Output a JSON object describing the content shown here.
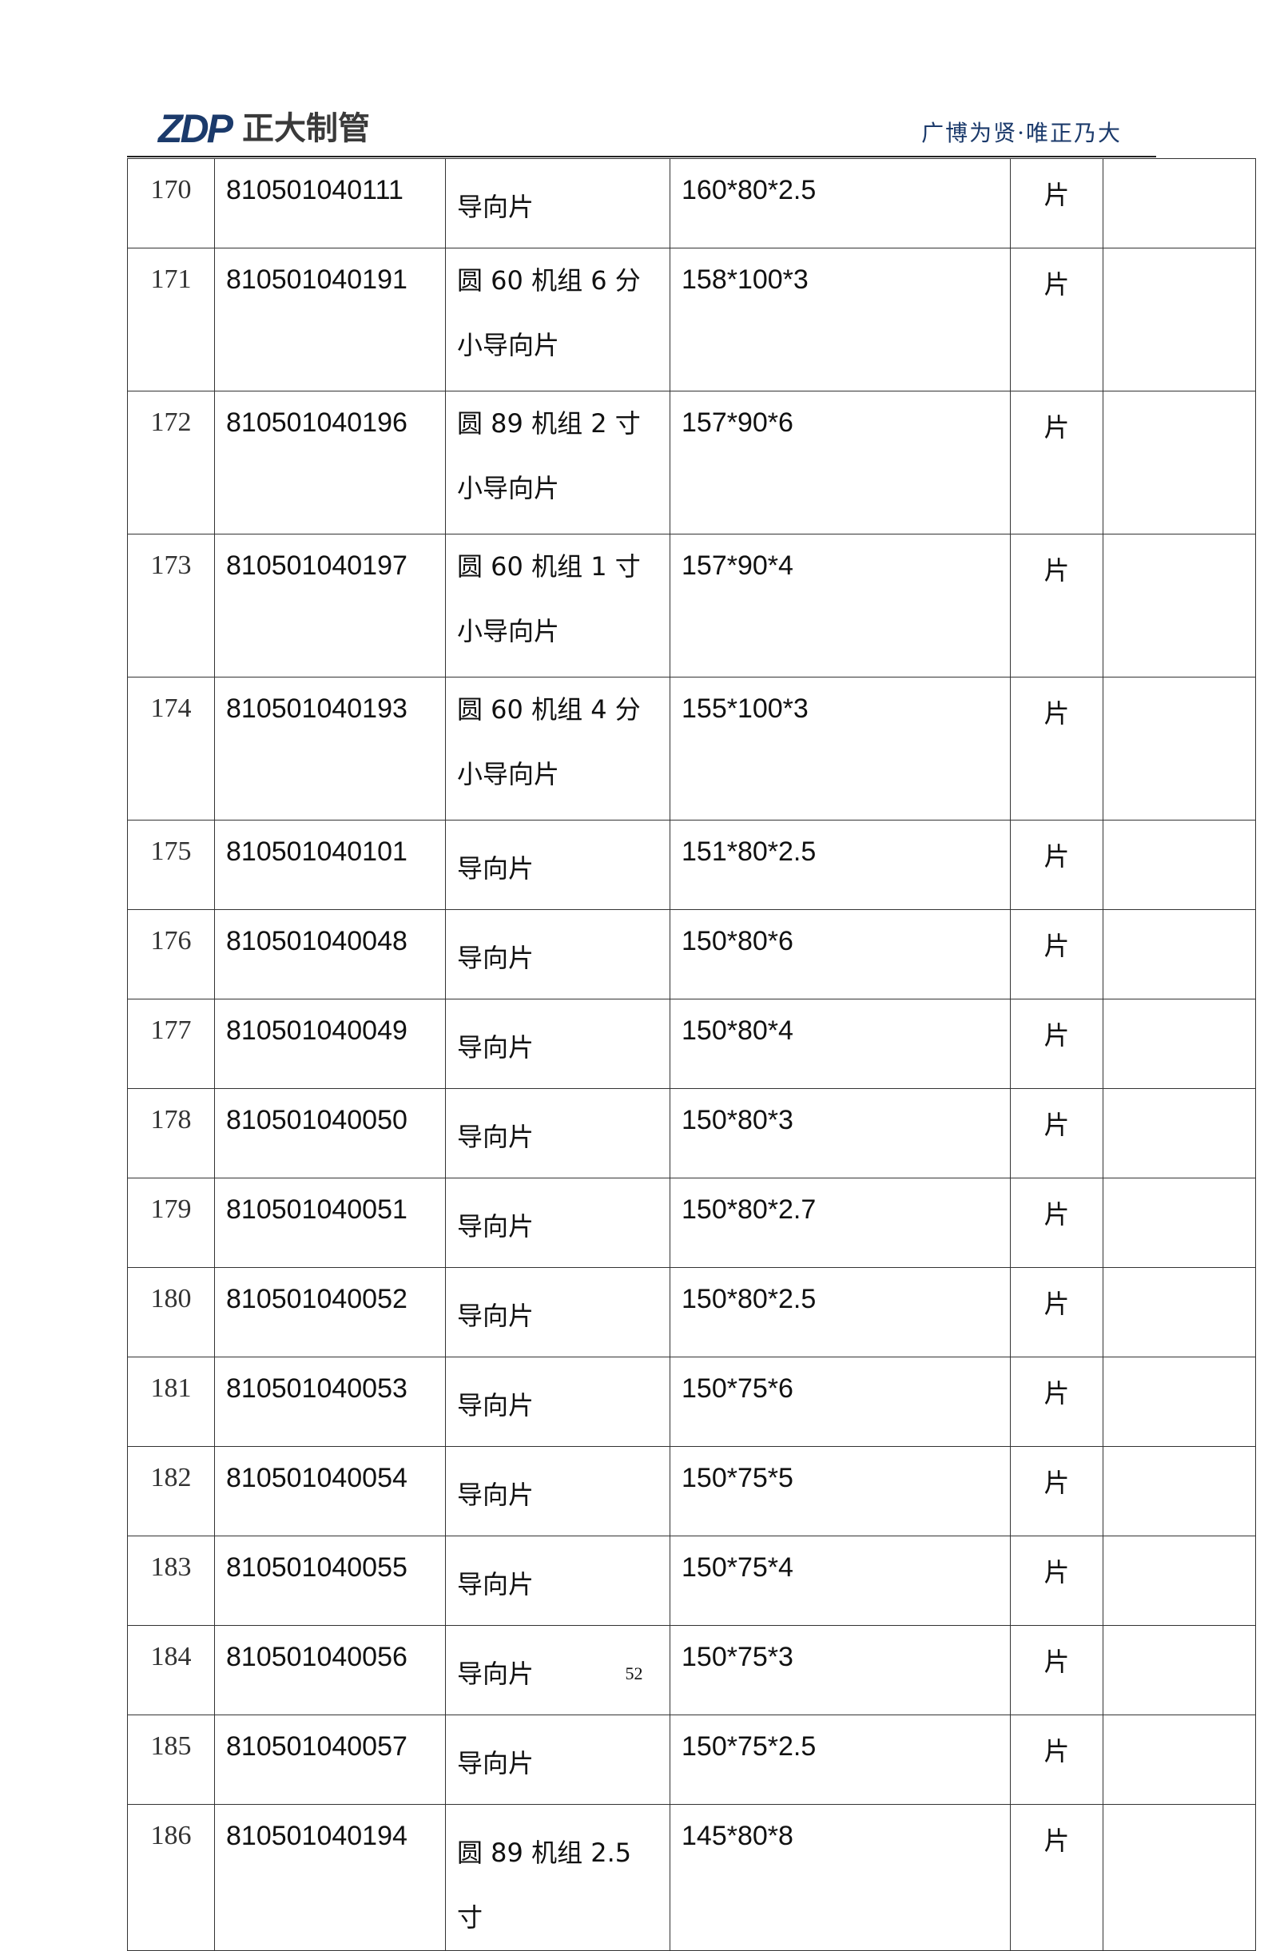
{
  "header": {
    "logo_mark": "ZDP",
    "logo_name": "正大制管",
    "slogan": "广博为贤·唯正乃大"
  },
  "rows": [
    {
      "no": "170",
      "code": "810501040111",
      "name": "导向片",
      "spec": "160*80*2.5",
      "unit": "片",
      "note": ""
    },
    {
      "no": "171",
      "code": "810501040191",
      "name": "圆 60 机组 6 分小导向片",
      "spec": "158*100*3",
      "unit": "片",
      "note": ""
    },
    {
      "no": "172",
      "code": "810501040196",
      "name": "圆 89 机组 2 寸小导向片",
      "spec": "157*90*6",
      "unit": "片",
      "note": ""
    },
    {
      "no": "173",
      "code": "810501040197",
      "name": "圆 60 机组 1 寸小导向片",
      "spec": "157*90*4",
      "unit": "片",
      "note": ""
    },
    {
      "no": "174",
      "code": "810501040193",
      "name": "圆 60 机组 4 分小导向片",
      "spec": "155*100*3",
      "unit": "片",
      "note": ""
    },
    {
      "no": "175",
      "code": "810501040101",
      "name": "导向片",
      "spec": "151*80*2.5",
      "unit": "片",
      "note": ""
    },
    {
      "no": "176",
      "code": "810501040048",
      "name": "导向片",
      "spec": "150*80*6",
      "unit": "片",
      "note": ""
    },
    {
      "no": "177",
      "code": "810501040049",
      "name": "导向片",
      "spec": "150*80*4",
      "unit": "片",
      "note": ""
    },
    {
      "no": "178",
      "code": "810501040050",
      "name": "导向片",
      "spec": "150*80*3",
      "unit": "片",
      "note": ""
    },
    {
      "no": "179",
      "code": "810501040051",
      "name": "导向片",
      "spec": "150*80*2.7",
      "unit": "片",
      "note": ""
    },
    {
      "no": "180",
      "code": "810501040052",
      "name": "导向片",
      "spec": "150*80*2.5",
      "unit": "片",
      "note": ""
    },
    {
      "no": "181",
      "code": "810501040053",
      "name": "导向片",
      "spec": "150*75*6",
      "unit": "片",
      "note": ""
    },
    {
      "no": "182",
      "code": "810501040054",
      "name": "导向片",
      "spec": "150*75*5",
      "unit": "片",
      "note": ""
    },
    {
      "no": "183",
      "code": "810501040055",
      "name": "导向片",
      "spec": "150*75*4",
      "unit": "片",
      "note": ""
    },
    {
      "no": "184",
      "code": "810501040056",
      "name": "导向片",
      "spec": "150*75*3",
      "unit": "片",
      "note": ""
    },
    {
      "no": "185",
      "code": "810501040057",
      "name": "导向片",
      "spec": "150*75*2.5",
      "unit": "片",
      "note": ""
    },
    {
      "no": "186",
      "code": "810501040194",
      "name": "圆 89 机组 2.5 寸",
      "spec": "145*80*8",
      "unit": "片",
      "note": ""
    }
  ],
  "footer": {
    "page_number": "52"
  }
}
